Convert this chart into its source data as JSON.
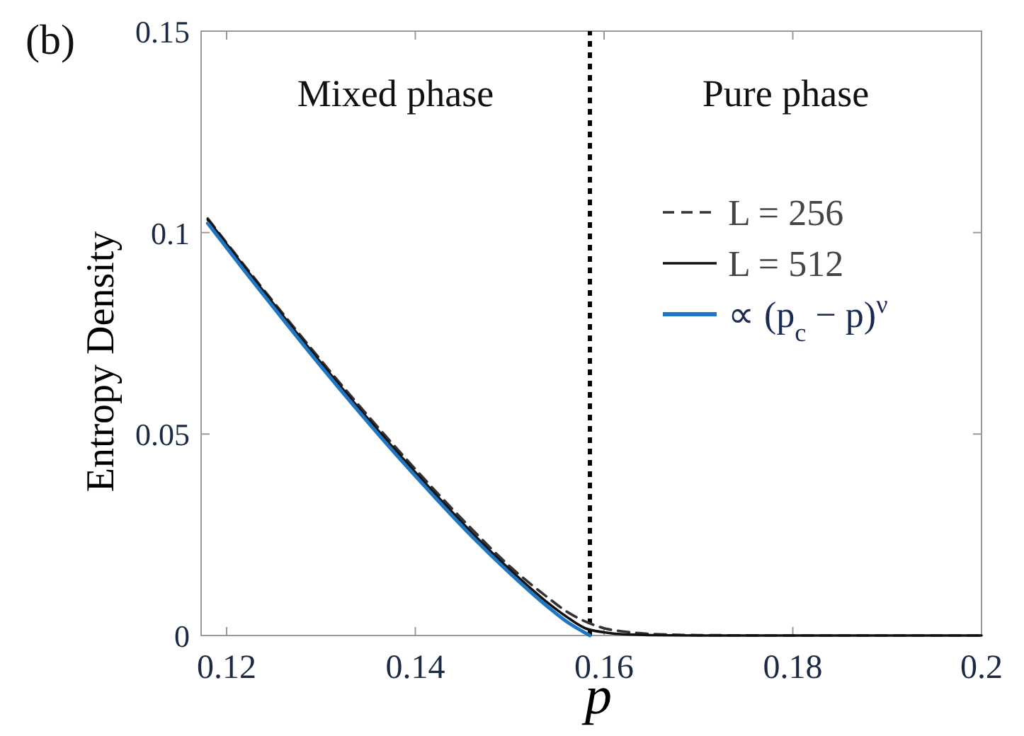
{
  "chart_data": {
    "type": "line",
    "xlabel": "p",
    "ylabel": "Entropy Density",
    "annotations": [
      "(b)",
      "Mixed phase",
      "Pure phase"
    ],
    "xlim": [
      0.1173,
      0.2
    ],
    "ylim": [
      0,
      0.15
    ],
    "xticks": [
      0.12,
      0.14,
      0.16,
      0.18,
      0.2
    ],
    "yticks": [
      0,
      0.05,
      0.1,
      0.15
    ],
    "grid": false,
    "legend": "top right",
    "marker": "none",
    "ref_lines": [
      {
        "axis": "x",
        "value": 0.1585,
        "color": "#000000",
        "line_style": "dotted"
      }
    ],
    "series": [
      {
        "name": "L = 256",
        "color": "#333333",
        "line_style": "dashed",
        "x": [
          0.118,
          0.122,
          0.126,
          0.13,
          0.134,
          0.138,
          0.142,
          0.146,
          0.15,
          0.154,
          0.156,
          0.158,
          0.16,
          0.162,
          0.165,
          0.17,
          0.18,
          0.19,
          0.2
        ],
        "values": [
          0.1035,
          0.0915,
          0.0798,
          0.0683,
          0.0572,
          0.0465,
          0.0362,
          0.0264,
          0.0172,
          0.0095,
          0.006,
          0.0035,
          0.0018,
          0.001,
          0.0004,
          0.0001,
          0,
          0,
          0
        ]
      },
      {
        "name": "L = 512",
        "color": "#111111",
        "line_style": "solid",
        "x": [
          0.118,
          0.122,
          0.126,
          0.13,
          0.134,
          0.138,
          0.142,
          0.146,
          0.15,
          0.154,
          0.156,
          0.158,
          0.16,
          0.162,
          0.165,
          0.17,
          0.18,
          0.19,
          0.2
        ],
        "values": [
          0.1032,
          0.0911,
          0.0793,
          0.0677,
          0.0565,
          0.0457,
          0.0354,
          0.0255,
          0.0164,
          0.0082,
          0.0047,
          0.0018,
          0.0008,
          0.0003,
          0.0001,
          0,
          0,
          0,
          0
        ]
      },
      {
        "name": "∝ (p$_{c}$ − p)$^{ν}$",
        "color": "#1f77c4",
        "line_style": "solid",
        "x": [
          0.118,
          0.122,
          0.126,
          0.13,
          0.134,
          0.138,
          0.142,
          0.146,
          0.15,
          0.154,
          0.156,
          0.1585
        ],
        "values": [
          0.1023,
          0.0902,
          0.0784,
          0.0668,
          0.0556,
          0.0448,
          0.0345,
          0.0246,
          0.0155,
          0.0072,
          0.0035,
          0
        ]
      }
    ]
  }
}
